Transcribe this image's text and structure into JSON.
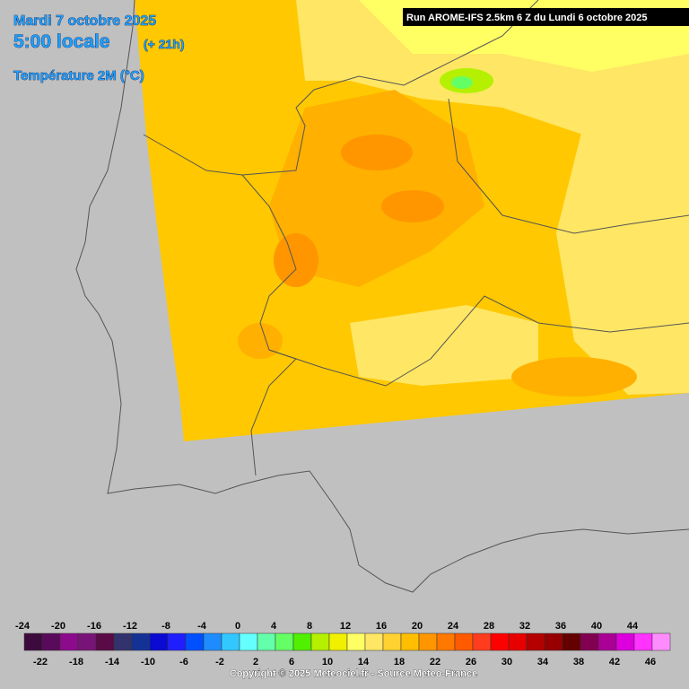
{
  "header": {
    "date": "Mardi 7 octobre 2025",
    "time": "5:00 locale",
    "lead": "(+ 21h)",
    "parameter": "Température 2M (°C)",
    "run": "Run AROME-IFS 2.5km 6 Z du Lundi 6 octobre 2025"
  },
  "legend": {
    "ticks": [
      -24,
      -22,
      -20,
      -18,
      -16,
      -14,
      -12,
      -10,
      -8,
      -6,
      -4,
      -2,
      0,
      2,
      4,
      6,
      8,
      10,
      12,
      14,
      16,
      18,
      20,
      22,
      24,
      26,
      28,
      30,
      32,
      34,
      36,
      38,
      40,
      42,
      44,
      46
    ],
    "colors": [
      "#3c0a3c",
      "#5a0a5a",
      "#8c0a8c",
      "#781478",
      "#5a0a46",
      "#32326e",
      "#143296",
      "#0a0ad2",
      "#1e1eff",
      "#0050ff",
      "#1e8cff",
      "#32c8ff",
      "#64ffff",
      "#64ffaa",
      "#64ff64",
      "#50f000",
      "#b4f000",
      "#f0f000",
      "#ffff64",
      "#ffe664",
      "#ffd232",
      "#ffbe00",
      "#ff9600",
      "#ff7800",
      "#ff5a00",
      "#ff3c1e",
      "#ff0000",
      "#e60000",
      "#b40000",
      "#960000",
      "#640000",
      "#820050",
      "#aa0096",
      "#dc00dc",
      "#ff32ff",
      "#ff8cff"
    ]
  },
  "footer": {
    "copyright": "Copyright © 2025 Meteociel.fr - Source Meteo-France"
  }
}
